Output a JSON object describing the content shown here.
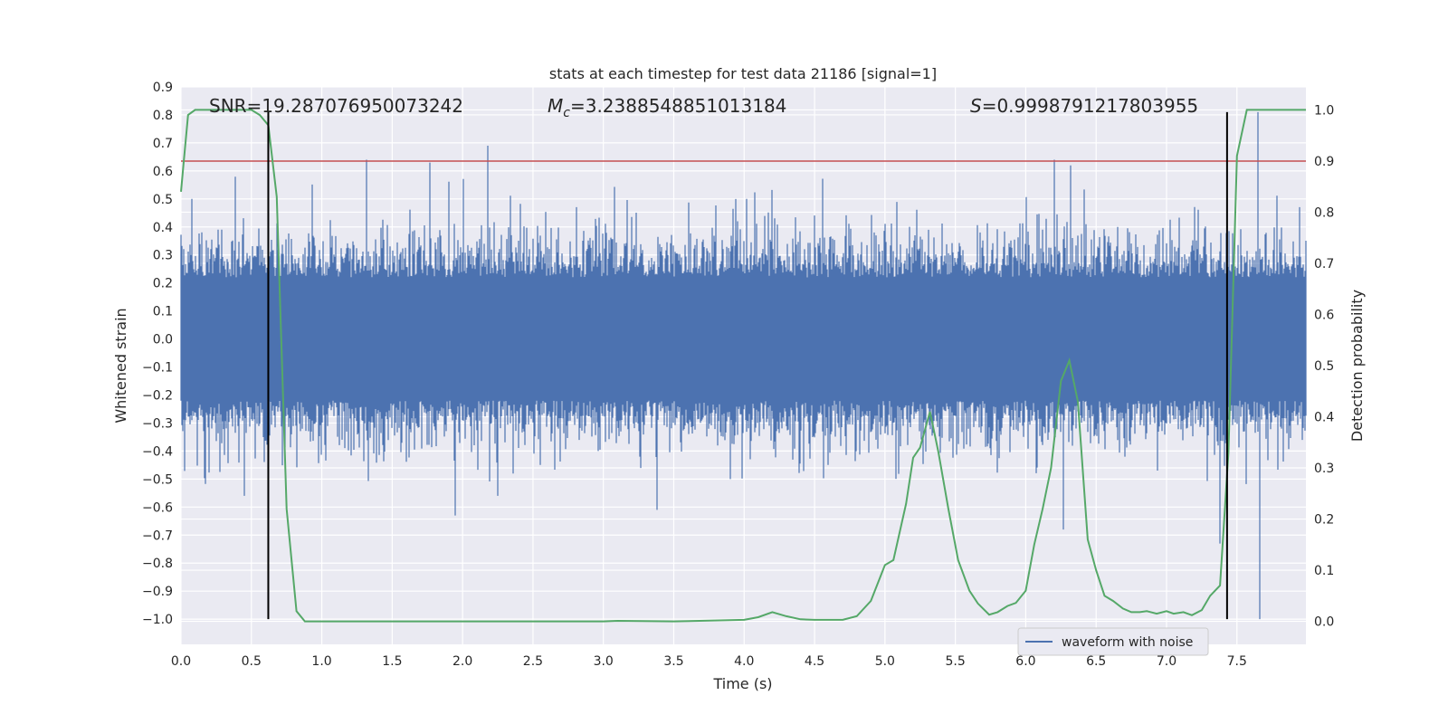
{
  "chart_data": {
    "type": "line",
    "title": "stats at each timestep for test data 21186 [signal=1]",
    "xlabel": "Time (s)",
    "ylabel": "Whitened strain",
    "y2label": "Detection probability",
    "xlim": [
      0.0,
      7.99
    ],
    "ylim": [
      -1.09,
      0.9
    ],
    "y2lim": [
      -0.045,
      1.045
    ],
    "x_ticks": [
      "0.0",
      "0.5",
      "1.0",
      "1.5",
      "2.0",
      "2.5",
      "3.0",
      "3.5",
      "4.0",
      "4.5",
      "5.0",
      "5.5",
      "6.0",
      "6.5",
      "7.0",
      "7.5"
    ],
    "y_ticks": [
      "0.9",
      "0.8",
      "0.7",
      "0.6",
      "0.5",
      "0.4",
      "0.3",
      "0.2",
      "0.1",
      "0.0",
      "−0.1",
      "−0.2",
      "−0.3",
      "−0.4",
      "−0.5",
      "−0.6",
      "−0.7",
      "−0.8",
      "−0.9",
      "−1.0"
    ],
    "y2_ticks": [
      "1.0",
      "0.9",
      "0.8",
      "0.7",
      "0.6",
      "0.5",
      "0.4",
      "0.3",
      "0.2",
      "0.1",
      "0.0"
    ],
    "annotations": {
      "snr": "SNR=19.287076950073242",
      "mc_symbol": "M",
      "mc_sub": "c",
      "mc_value": "=3.2388548851013184",
      "s_symbol": "S",
      "s_value": "=0.9998791217803955"
    },
    "legend": {
      "label": "waveform with noise",
      "position": "bottom-right"
    },
    "threshold": {
      "axis": "right",
      "value": 0.9,
      "color": "#c44e52"
    },
    "vlines": [
      {
        "x": 0.62,
        "ymin": -1.0,
        "ymax": 0.81,
        "color": "#000000"
      },
      {
        "x": 7.43,
        "ymin": -1.0,
        "ymax": 0.81,
        "color": "#000000"
      }
    ],
    "series": [
      {
        "name": "waveform with noise",
        "axis": "left",
        "color": "#4c72b0",
        "description": "whitened strain, approx. 8 s of noisy data, envelope roughly -0.5..0.5 with spikes up to 0.8 near 7.65 s",
        "sample_rate_plot": 1000,
        "spikes": [
          {
            "x": 1.32,
            "y": 0.64
          },
          {
            "x": 1.77,
            "y": 0.63
          },
          {
            "x": 2.18,
            "y": 0.69
          },
          {
            "x": 6.2,
            "y": 0.64
          },
          {
            "x": 6.32,
            "y": 0.62
          },
          {
            "x": 7.65,
            "y": 0.81
          },
          {
            "x": 1.95,
            "y": -0.63
          },
          {
            "x": 2.25,
            "y": -0.56
          },
          {
            "x": 3.38,
            "y": -0.61
          },
          {
            "x": 6.27,
            "y": -0.68
          },
          {
            "x": 7.38,
            "y": -0.73
          },
          {
            "x": 7.66,
            "y": -1.0
          },
          {
            "x": 0.45,
            "y": -0.56
          },
          {
            "x": 0.08,
            "y": 0.5
          }
        ]
      },
      {
        "name": "detection probability",
        "axis": "right",
        "color": "#55a868",
        "x": [
          0.0,
          0.02,
          0.05,
          0.1,
          0.2,
          0.3,
          0.4,
          0.5,
          0.56,
          0.62,
          0.68,
          0.75,
          0.82,
          0.88,
          1.0,
          1.5,
          2.0,
          2.5,
          3.0,
          3.1,
          3.5,
          4.0,
          4.1,
          4.2,
          4.3,
          4.4,
          4.5,
          4.6,
          4.7,
          4.8,
          4.9,
          5.0,
          5.06,
          5.15,
          5.2,
          5.25,
          5.32,
          5.38,
          5.45,
          5.52,
          5.6,
          5.66,
          5.74,
          5.8,
          5.87,
          5.93,
          6.0,
          6.06,
          6.12,
          6.18,
          6.25,
          6.31,
          6.37,
          6.44,
          6.5,
          6.56,
          6.62,
          6.69,
          6.75,
          6.81,
          6.86,
          6.93,
          7.0,
          7.05,
          7.12,
          7.18,
          7.25,
          7.31,
          7.38,
          7.44,
          7.5,
          7.57,
          7.65,
          7.7,
          7.99
        ],
        "y": [
          0.84,
          0.9,
          0.99,
          1.0,
          1.0,
          1.0,
          1.0,
          1.0,
          0.99,
          0.97,
          0.83,
          0.22,
          0.02,
          0.0,
          0.0,
          0.0,
          0.0,
          0.0,
          0.0,
          0.001,
          0.0,
          0.003,
          0.008,
          0.018,
          0.01,
          0.004,
          0.003,
          0.003,
          0.003,
          0.01,
          0.04,
          0.11,
          0.12,
          0.23,
          0.32,
          0.34,
          0.41,
          0.33,
          0.22,
          0.12,
          0.06,
          0.035,
          0.013,
          0.018,
          0.03,
          0.036,
          0.06,
          0.15,
          0.22,
          0.3,
          0.47,
          0.51,
          0.43,
          0.16,
          0.1,
          0.05,
          0.04,
          0.025,
          0.018,
          0.018,
          0.02,
          0.015,
          0.02,
          0.015,
          0.018,
          0.012,
          0.022,
          0.05,
          0.07,
          0.33,
          0.91,
          1.0,
          1.0,
          1.0,
          1.0
        ]
      }
    ]
  }
}
